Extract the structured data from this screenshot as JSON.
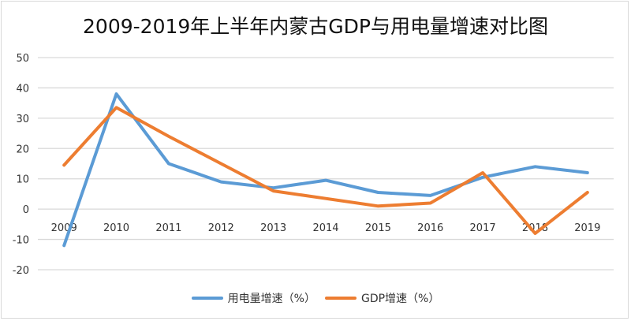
{
  "chart_data": {
    "type": "line",
    "title": "2009-2019年上半年内蒙古GDP与用电量增速对比图",
    "xlabel": "",
    "ylabel": "",
    "categories": [
      "2009",
      "2010",
      "2011",
      "2012",
      "2013",
      "2014",
      "2015",
      "2016",
      "2017",
      "2018",
      "2019"
    ],
    "ylim": [
      -20,
      50
    ],
    "yticks": [
      50,
      40,
      30,
      20,
      10,
      0,
      -10,
      -20
    ],
    "grid": true,
    "legend_position": "bottom",
    "series": [
      {
        "name": "用电量增速（%）",
        "color": "#5b9bd5",
        "values": [
          -12,
          38,
          15,
          9,
          7,
          9.5,
          5.5,
          4.5,
          10.5,
          14,
          12
        ]
      },
      {
        "name": "GDP增速（%）",
        "color": "#ed7d31",
        "values": [
          14.5,
          33.5,
          24,
          15,
          6,
          3.5,
          1,
          2,
          12,
          -8,
          5.5
        ]
      }
    ]
  }
}
